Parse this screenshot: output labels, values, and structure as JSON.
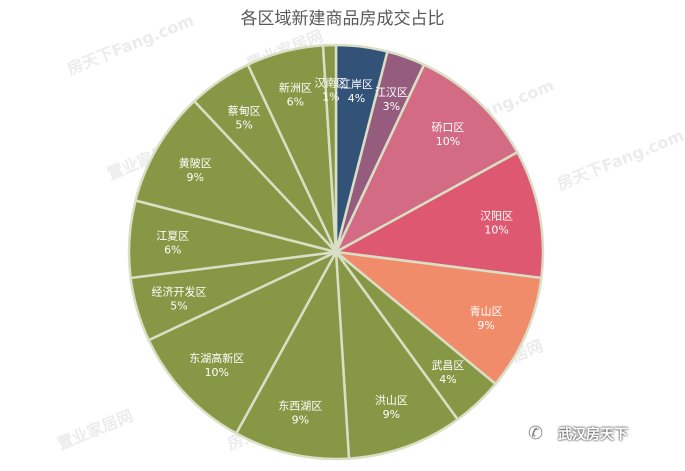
{
  "chart_data": {
    "type": "pie",
    "title": "各区域新建商品房成交占比",
    "start_angle_deg": 0,
    "direction": "clockwise",
    "slices": [
      {
        "label": "江岸区",
        "value": 4,
        "display": "4%",
        "color": "#325278"
      },
      {
        "label": "江汉区",
        "value": 3,
        "display": "3%",
        "color": "#955c7d"
      },
      {
        "label": "硚口区",
        "value": 10,
        "display": "10%",
        "color": "#d26b83"
      },
      {
        "label": "汉阳区",
        "value": 10,
        "display": "10%",
        "color": "#dd5870"
      },
      {
        "label": "青山区",
        "value": 9,
        "display": "9%",
        "color": "#f18c6b"
      },
      {
        "label": "武昌区",
        "value": 4,
        "display": "4%",
        "color": "#869745"
      },
      {
        "label": "洪山区",
        "value": 9,
        "display": "9%",
        "color": "#869745"
      },
      {
        "label": "东西湖区",
        "value": 9,
        "display": "9%",
        "color": "#869745"
      },
      {
        "label": "东湖高新区",
        "value": 10,
        "display": "10%",
        "color": "#869745"
      },
      {
        "label": "经济开发区",
        "value": 5,
        "display": "5%",
        "color": "#869745"
      },
      {
        "label": "江夏区",
        "value": 6,
        "display": "6%",
        "color": "#869745"
      },
      {
        "label": "黄陂区",
        "value": 9,
        "display": "9%",
        "color": "#869745"
      },
      {
        "label": "蔡甸区",
        "value": 5,
        "display": "5%",
        "color": "#869745"
      },
      {
        "label": "新洲区",
        "value": 6,
        "display": "6%",
        "color": "#869745"
      },
      {
        "label": "汉南区",
        "value": 1,
        "display": "1%",
        "color": "#869745"
      }
    ],
    "slice_border_color": "#d9dfc4"
  },
  "watermark": {
    "text": "房天下Fang.com",
    "subtext": "置业家居网"
  },
  "brand": {
    "text": "武汉房天下"
  }
}
